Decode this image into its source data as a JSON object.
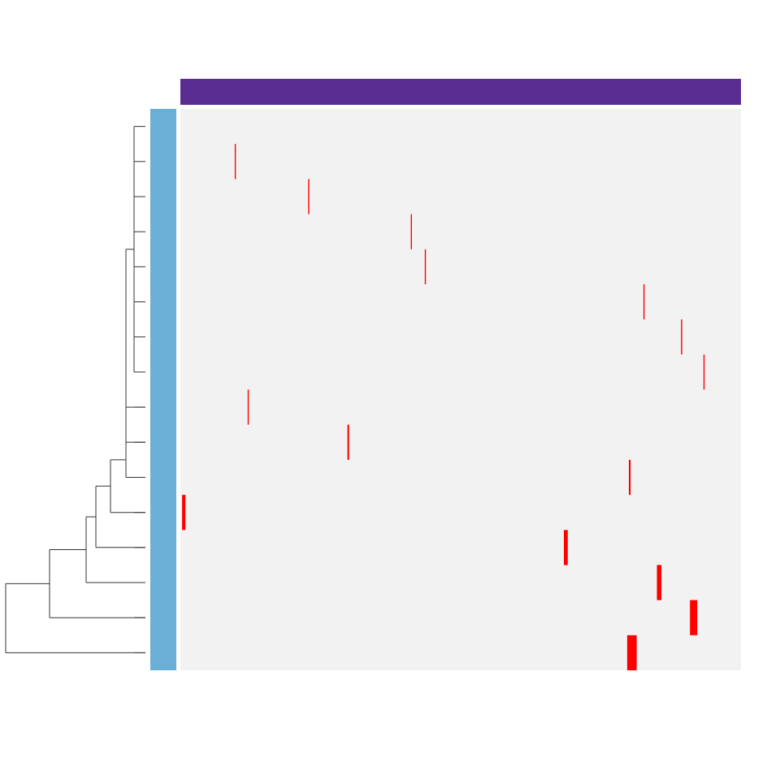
{
  "colors": {
    "background": "#ffffff",
    "panel": "#f2f2f2",
    "top_annotation": "#582c91",
    "left_annotation": "#6baed6",
    "mark": "#ff0000",
    "dendrogram": "#333333"
  },
  "chart_data": {
    "type": "heatmap",
    "title": "",
    "xlabel": "",
    "ylabel": "",
    "n_rows": 16,
    "xlim": [
      0,
      1
    ],
    "row_dendrogram": true,
    "top_annotation_bar": true,
    "left_annotation_bar": true,
    "highlights": [
      {
        "row": 1,
        "x": 0.097,
        "width": 0.002
      },
      {
        "row": 2,
        "x": 0.228,
        "width": 0.002
      },
      {
        "row": 3,
        "x": 0.411,
        "width": 0.002
      },
      {
        "row": 4,
        "x": 0.436,
        "width": 0.002
      },
      {
        "row": 5,
        "x": 0.826,
        "width": 0.002
      },
      {
        "row": 6,
        "x": 0.893,
        "width": 0.002
      },
      {
        "row": 7,
        "x": 0.933,
        "width": 0.002
      },
      {
        "row": 8,
        "x": 0.12,
        "width": 0.002
      },
      {
        "row": 9,
        "x": 0.298,
        "width": 0.003
      },
      {
        "row": 10,
        "x": 0.8,
        "width": 0.003
      },
      {
        "row": 11,
        "x": 0.003,
        "width": 0.006
      },
      {
        "row": 12,
        "x": 0.684,
        "width": 0.007
      },
      {
        "row": 13,
        "x": 0.85,
        "width": 0.008
      },
      {
        "row": 14,
        "x": 0.909,
        "width": 0.013
      },
      {
        "row": 15,
        "x": 0.797,
        "width": 0.017
      }
    ]
  }
}
